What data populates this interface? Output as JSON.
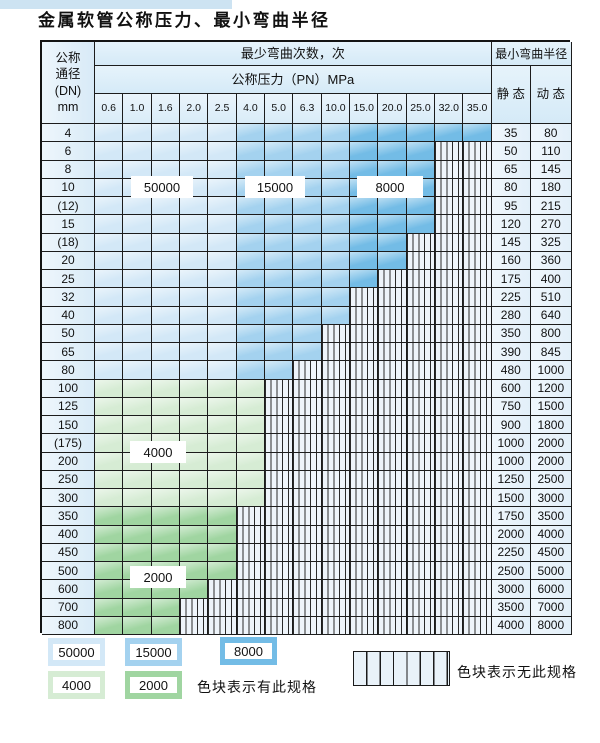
{
  "title": "金属软管公称压力、最小弯曲半径",
  "table": {
    "corner": {
      "lines": [
        "公称",
        "通径",
        "(DN)",
        "mm"
      ]
    },
    "bend_cycles_header": "最少弯曲次数，次",
    "pressure_header": "公称压力（PN）MPa",
    "pressure_ticks": [
      "0.6",
      "1.0",
      "1.6",
      "2.0",
      "2.5",
      "4.0",
      "5.0",
      "6.3",
      "10.0",
      "15.0",
      "20.0",
      "25.0",
      "32.0",
      "35.0"
    ],
    "radius_header": "最小弯曲半径",
    "static_header": "静 态",
    "dynamic_header": "动 态",
    "rows": [
      {
        "dn": "4",
        "static": "35",
        "dynamic": "80",
        "band": "blue",
        "colored": 14
      },
      {
        "dn": "6",
        "static": "50",
        "dynamic": "110",
        "band": "blue",
        "colored": 12
      },
      {
        "dn": "8",
        "static": "65",
        "dynamic": "145",
        "band": "blue",
        "colored": 12
      },
      {
        "dn": "10",
        "static": "80",
        "dynamic": "180",
        "band": "blue",
        "colored": 12
      },
      {
        "dn": "(12)",
        "static": "95",
        "dynamic": "215",
        "band": "blue",
        "colored": 12
      },
      {
        "dn": "15",
        "static": "120",
        "dynamic": "270",
        "band": "blue",
        "colored": 12
      },
      {
        "dn": "(18)",
        "static": "145",
        "dynamic": "325",
        "band": "blue",
        "colored": 11
      },
      {
        "dn": "20",
        "static": "160",
        "dynamic": "360",
        "band": "blue",
        "colored": 11
      },
      {
        "dn": "25",
        "static": "175",
        "dynamic": "400",
        "band": "blue",
        "colored": 10
      },
      {
        "dn": "32",
        "static": "225",
        "dynamic": "510",
        "band": "blue",
        "colored": 9
      },
      {
        "dn": "40",
        "static": "280",
        "dynamic": "640",
        "band": "blue",
        "colored": 9
      },
      {
        "dn": "50",
        "static": "350",
        "dynamic": "800",
        "band": "blue",
        "colored": 8
      },
      {
        "dn": "65",
        "static": "390",
        "dynamic": "845",
        "band": "blue",
        "colored": 8
      },
      {
        "dn": "80",
        "static": "480",
        "dynamic": "1000",
        "band": "blue",
        "colored": 7
      },
      {
        "dn": "100",
        "static": "600",
        "dynamic": "1200",
        "band": "g4",
        "colored": 6
      },
      {
        "dn": "125",
        "static": "750",
        "dynamic": "1500",
        "band": "g4",
        "colored": 6
      },
      {
        "dn": "150",
        "static": "900",
        "dynamic": "1800",
        "band": "g4",
        "colored": 6
      },
      {
        "dn": "(175)",
        "static": "1000",
        "dynamic": "2000",
        "band": "g4",
        "colored": 6
      },
      {
        "dn": "200",
        "static": "1000",
        "dynamic": "2000",
        "band": "g4",
        "colored": 6
      },
      {
        "dn": "250",
        "static": "1250",
        "dynamic": "2500",
        "band": "g4",
        "colored": 6
      },
      {
        "dn": "300",
        "static": "1500",
        "dynamic": "3000",
        "band": "g4",
        "colored": 6
      },
      {
        "dn": "350",
        "static": "1750",
        "dynamic": "3500",
        "band": "g2",
        "colored": 5
      },
      {
        "dn": "400",
        "static": "2000",
        "dynamic": "4000",
        "band": "g2",
        "colored": 5
      },
      {
        "dn": "450",
        "static": "2250",
        "dynamic": "4500",
        "band": "g2",
        "colored": 5
      },
      {
        "dn": "500",
        "static": "2500",
        "dynamic": "5000",
        "band": "g2",
        "colored": 5
      },
      {
        "dn": "600",
        "static": "3000",
        "dynamic": "6000",
        "band": "g2",
        "colored": 4
      },
      {
        "dn": "700",
        "static": "3500",
        "dynamic": "7000",
        "band": "g2",
        "colored": 3
      },
      {
        "dn": "800",
        "static": "4000",
        "dynamic": "8000",
        "band": "g2",
        "colored": 3
      }
    ]
  },
  "zones": {
    "blue_breaks": [
      5,
      9
    ],
    "blue_keys": [
      "c50000",
      "c15000",
      "c8000"
    ],
    "g4_key": "c4000",
    "g2_key": "c2000"
  },
  "colors": {
    "c50000": "#d3e8f7",
    "c15000": "#a4d2ef",
    "c8000": "#73bce6",
    "c4000": "#d6ecd4",
    "c2000": "#a0d5a1"
  },
  "cycle_labels": {
    "l50000": "50000",
    "l15000": "15000",
    "l8000": "8000",
    "l4000": "4000",
    "l2000": "2000"
  },
  "legend": {
    "items": [
      {
        "label": "50000",
        "key": "c50000"
      },
      {
        "label": "15000",
        "key": "c15000"
      },
      {
        "label": "8000",
        "key": "c8000"
      },
      {
        "label": "4000",
        "key": "c4000"
      },
      {
        "label": "2000",
        "key": "c2000"
      }
    ],
    "has_spec_text": "色块表示有此规格",
    "no_spec_text": "色块表示无此规格"
  }
}
